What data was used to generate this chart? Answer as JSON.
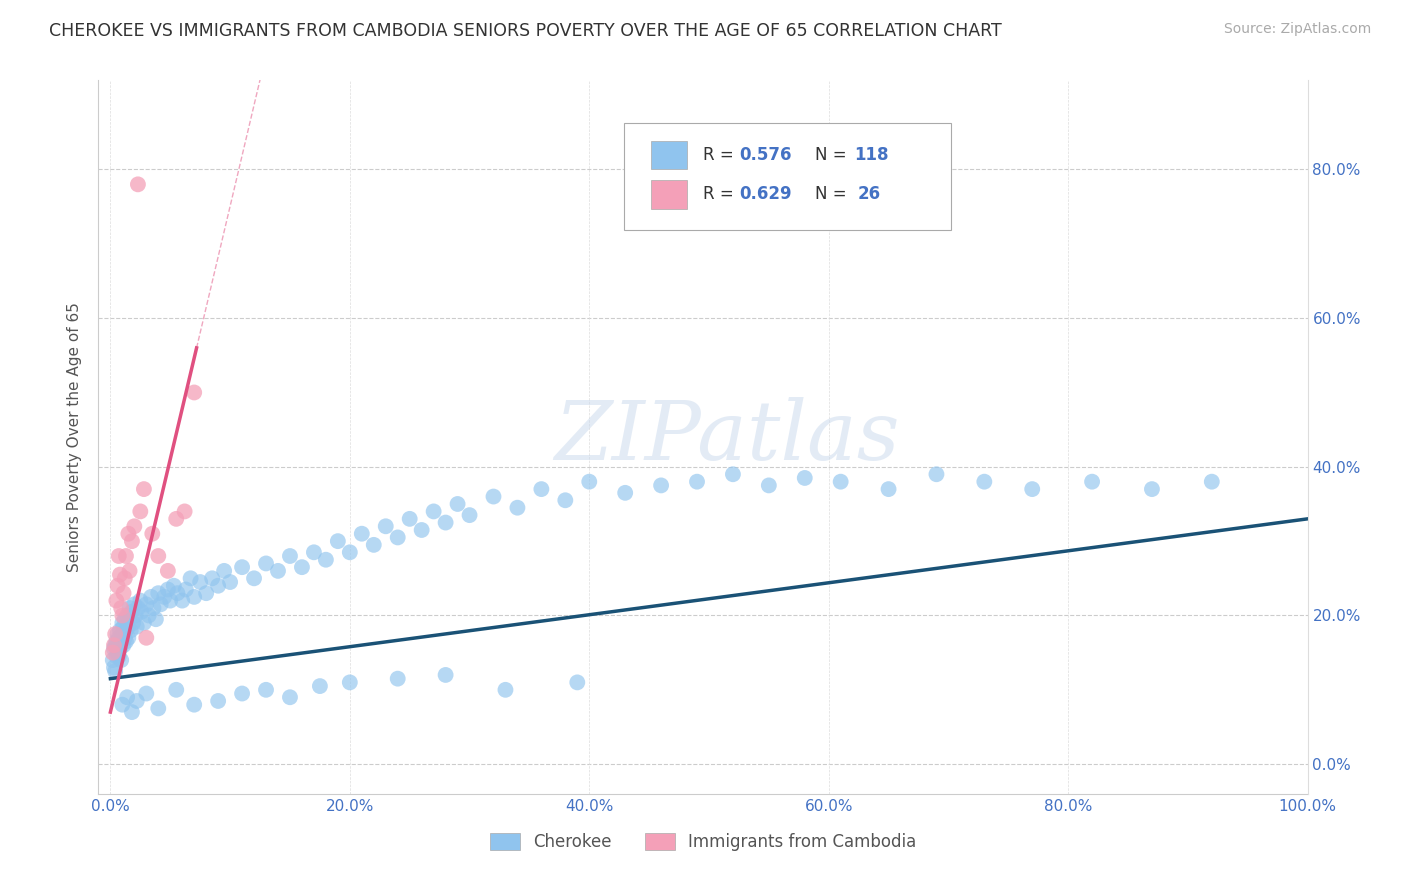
{
  "title": "CHEROKEE VS IMMIGRANTS FROM CAMBODIA SENIORS POVERTY OVER THE AGE OF 65 CORRELATION CHART",
  "source": "Source: ZipAtlas.com",
  "ylabel": "Seniors Poverty Over the Age of 65",
  "xlim": [
    -0.01,
    1.0
  ],
  "ylim": [
    -0.04,
    0.92
  ],
  "yticks": [
    0.0,
    0.2,
    0.4,
    0.6,
    0.8
  ],
  "ytick_labels": [
    "0.0%",
    "20.0%",
    "40.0%",
    "60.0%",
    "80.0%"
  ],
  "xticks": [
    0.0,
    0.2,
    0.4,
    0.6,
    0.8,
    1.0
  ],
  "xtick_labels": [
    "0.0%",
    "",
    "40.0%",
    "",
    "80.0%",
    "100.0%"
  ],
  "xtick_labels_full": [
    "0.0%",
    "20.0%",
    "40.0%",
    "60.0%",
    "80.0%",
    "100.0%"
  ],
  "cherokee_color": "#90C4EE",
  "cambodia_color": "#F4A0B8",
  "trend_blue": "#1A5276",
  "trend_pink": "#E05080",
  "label1": "Cherokee",
  "label2": "Immigrants from Cambodia",
  "watermark": "ZIPatlas",
  "tick_color": "#4472C4",
  "cherokee_x": [
    0.002,
    0.003,
    0.003,
    0.004,
    0.004,
    0.005,
    0.005,
    0.006,
    0.006,
    0.007,
    0.007,
    0.007,
    0.008,
    0.008,
    0.009,
    0.009,
    0.01,
    0.01,
    0.011,
    0.011,
    0.012,
    0.012,
    0.013,
    0.013,
    0.014,
    0.015,
    0.015,
    0.016,
    0.016,
    0.017,
    0.018,
    0.019,
    0.02,
    0.021,
    0.022,
    0.023,
    0.025,
    0.026,
    0.028,
    0.03,
    0.032,
    0.034,
    0.036,
    0.038,
    0.04,
    0.042,
    0.045,
    0.048,
    0.05,
    0.053,
    0.056,
    0.06,
    0.063,
    0.067,
    0.07,
    0.075,
    0.08,
    0.085,
    0.09,
    0.095,
    0.1,
    0.11,
    0.12,
    0.13,
    0.14,
    0.15,
    0.16,
    0.17,
    0.18,
    0.19,
    0.2,
    0.21,
    0.22,
    0.23,
    0.24,
    0.25,
    0.26,
    0.27,
    0.28,
    0.29,
    0.3,
    0.32,
    0.34,
    0.36,
    0.38,
    0.4,
    0.43,
    0.46,
    0.49,
    0.52,
    0.55,
    0.58,
    0.61,
    0.65,
    0.69,
    0.73,
    0.77,
    0.82,
    0.87,
    0.92,
    0.01,
    0.014,
    0.018,
    0.022,
    0.03,
    0.04,
    0.055,
    0.07,
    0.09,
    0.11,
    0.13,
    0.15,
    0.175,
    0.2,
    0.24,
    0.28,
    0.33,
    0.39
  ],
  "cherokee_y": [
    0.14,
    0.155,
    0.13,
    0.16,
    0.125,
    0.145,
    0.165,
    0.15,
    0.175,
    0.16,
    0.145,
    0.17,
    0.155,
    0.18,
    0.165,
    0.14,
    0.175,
    0.19,
    0.16,
    0.185,
    0.17,
    0.195,
    0.18,
    0.165,
    0.2,
    0.185,
    0.17,
    0.195,
    0.21,
    0.18,
    0.205,
    0.19,
    0.215,
    0.2,
    0.185,
    0.21,
    0.22,
    0.205,
    0.19,
    0.215,
    0.2,
    0.225,
    0.21,
    0.195,
    0.23,
    0.215,
    0.225,
    0.235,
    0.22,
    0.24,
    0.23,
    0.22,
    0.235,
    0.25,
    0.225,
    0.245,
    0.23,
    0.25,
    0.24,
    0.26,
    0.245,
    0.265,
    0.25,
    0.27,
    0.26,
    0.28,
    0.265,
    0.285,
    0.275,
    0.3,
    0.285,
    0.31,
    0.295,
    0.32,
    0.305,
    0.33,
    0.315,
    0.34,
    0.325,
    0.35,
    0.335,
    0.36,
    0.345,
    0.37,
    0.355,
    0.38,
    0.365,
    0.375,
    0.38,
    0.39,
    0.375,
    0.385,
    0.38,
    0.37,
    0.39,
    0.38,
    0.37,
    0.38,
    0.37,
    0.38,
    0.08,
    0.09,
    0.07,
    0.085,
    0.095,
    0.075,
    0.1,
    0.08,
    0.085,
    0.095,
    0.1,
    0.09,
    0.105,
    0.11,
    0.115,
    0.12,
    0.1,
    0.11
  ],
  "cambodia_x": [
    0.002,
    0.003,
    0.004,
    0.005,
    0.006,
    0.007,
    0.008,
    0.009,
    0.01,
    0.011,
    0.012,
    0.013,
    0.015,
    0.016,
    0.018,
    0.02,
    0.023,
    0.025,
    0.028,
    0.03,
    0.035,
    0.04,
    0.048,
    0.055,
    0.062,
    0.07
  ],
  "cambodia_y": [
    0.15,
    0.16,
    0.175,
    0.22,
    0.24,
    0.28,
    0.255,
    0.21,
    0.2,
    0.23,
    0.25,
    0.28,
    0.31,
    0.26,
    0.3,
    0.32,
    0.78,
    0.34,
    0.37,
    0.17,
    0.31,
    0.28,
    0.26,
    0.33,
    0.34,
    0.5
  ],
  "cherokee_trend_x": [
    0.0,
    1.0
  ],
  "cherokee_trend_y": [
    0.115,
    0.33
  ],
  "cambodia_trend_x": [
    0.0,
    0.072
  ],
  "cambodia_trend_y": [
    0.07,
    0.56
  ]
}
